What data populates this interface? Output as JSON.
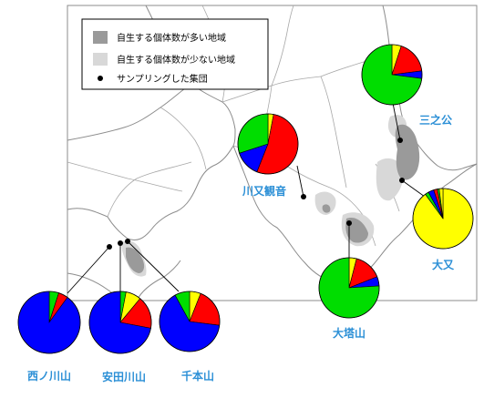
{
  "colors": {
    "green": "#00dd00",
    "red": "#ff0000",
    "blue": "#0000ff",
    "yellow": "#ffff00",
    "label": "#2b8fd6",
    "dense_region": "#9a9a9a",
    "sparse_region": "#d8d8d8",
    "border": "#8c8c8c"
  },
  "legend": {
    "dense_label": "自生する個体数が多い地域",
    "sparse_label": "自生する個体数が少ない地域",
    "site_label": "サンプリングした集団"
  },
  "pies": [
    {
      "name": "西ノ川山",
      "slices": [
        {
          "color": "green",
          "value": 0.05
        },
        {
          "color": "red",
          "value": 0.05
        },
        {
          "color": "blue",
          "value": 0.9
        }
      ]
    },
    {
      "name": "安田川山",
      "slices": [
        {
          "color": "green",
          "value": 0.03
        },
        {
          "color": "yellow",
          "value": 0.08
        },
        {
          "color": "red",
          "value": 0.17
        },
        {
          "color": "blue",
          "value": 0.72
        }
      ]
    },
    {
      "name": "千本山",
      "slices": [
        {
          "color": "yellow",
          "value": 0.06
        },
        {
          "color": "red",
          "value": 0.21
        },
        {
          "color": "blue",
          "value": 0.65
        },
        {
          "color": "green",
          "value": 0.08
        }
      ]
    },
    {
      "name": "川又観音",
      "slices": [
        {
          "color": "yellow",
          "value": 0.03
        },
        {
          "color": "red",
          "value": 0.53
        },
        {
          "color": "blue",
          "value": 0.14
        },
        {
          "color": "green",
          "value": 0.3
        }
      ]
    },
    {
      "name": "三之公",
      "slices": [
        {
          "color": "yellow",
          "value": 0.05
        },
        {
          "color": "red",
          "value": 0.18
        },
        {
          "color": "blue",
          "value": 0.04
        },
        {
          "color": "green",
          "value": 0.73
        }
      ]
    },
    {
      "name": "大塔山",
      "slices": [
        {
          "color": "yellow",
          "value": 0.04
        },
        {
          "color": "red",
          "value": 0.15
        },
        {
          "color": "blue",
          "value": 0.05
        },
        {
          "color": "green",
          "value": 0.76
        }
      ]
    },
    {
      "name": "大又",
      "slices": [
        {
          "color": "yellow",
          "value": 0.9
        },
        {
          "color": "green",
          "value": 0.02
        },
        {
          "color": "blue",
          "value": 0.03
        },
        {
          "color": "red",
          "value": 0.02
        },
        {
          "color": "green",
          "value": 0.01
        },
        {
          "color": "yellow",
          "value": 0.02
        }
      ]
    }
  ]
}
